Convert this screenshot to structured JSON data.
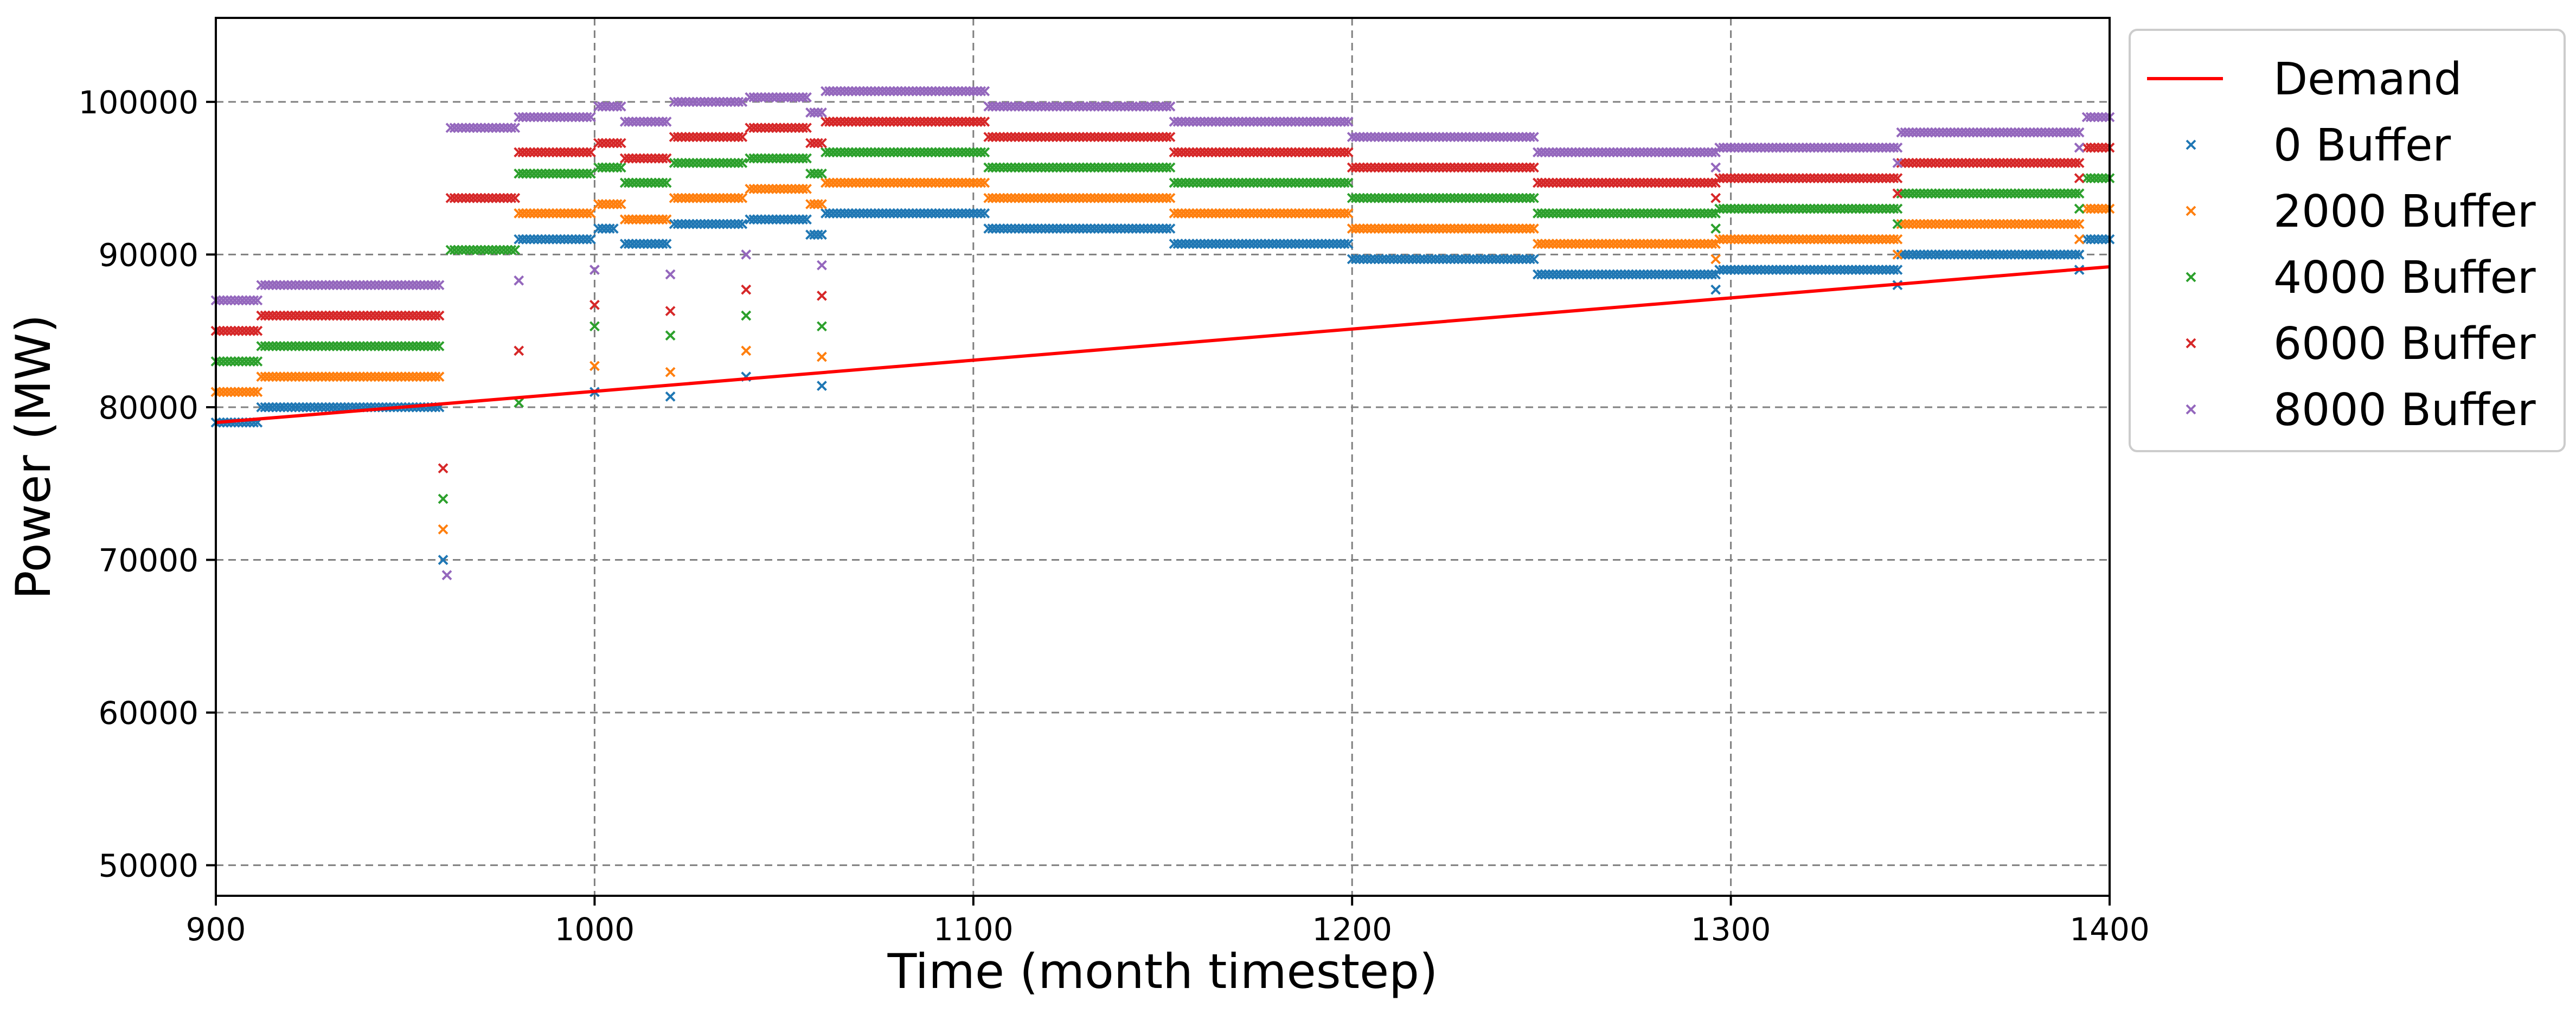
{
  "chart_data": {
    "type": "scatter",
    "title": "",
    "xlabel": "Time (month timestep)",
    "ylabel": "Power (MW)",
    "xlim": [
      900,
      1400
    ],
    "ylim": [
      48000,
      105500
    ],
    "x_ticks": [
      900,
      1000,
      1100,
      1200,
      1300,
      1400
    ],
    "y_ticks": [
      50000,
      60000,
      70000,
      80000,
      90000,
      100000
    ],
    "grid": true,
    "legend_position": "outside-right-top",
    "demand": {
      "name": "Demand",
      "type": "line",
      "color": "#ff0000",
      "x": [
        900,
        1400
      ],
      "y": [
        79000,
        89200
      ]
    },
    "series": [
      {
        "name": "0 Buffer",
        "color": "#1f77b4",
        "marker": "x",
        "segments": [
          {
            "x_start": 900,
            "x_end": 911,
            "y": 79000
          },
          {
            "x_start": 912,
            "x_end": 959,
            "y": 80000
          },
          {
            "x_start": 980,
            "x_end": 999,
            "y": 91000
          },
          {
            "x_start": 1001,
            "x_end": 1005,
            "y": 91700
          },
          {
            "x_start": 1008,
            "x_end": 1019,
            "y": 90700
          },
          {
            "x_start": 1021,
            "x_end": 1039,
            "y": 92000
          },
          {
            "x_start": 1041,
            "x_end": 1056,
            "y": 92300
          },
          {
            "x_start": 1057,
            "x_end": 1060,
            "y": 91300
          },
          {
            "x_start": 1061,
            "x_end": 1103,
            "y": 92700
          },
          {
            "x_start": 1104,
            "x_end": 1152,
            "y": 91700
          },
          {
            "x_start": 1153,
            "x_end": 1199,
            "y": 90700
          },
          {
            "x_start": 1200,
            "x_end": 1248,
            "y": 89700
          },
          {
            "x_start": 1249,
            "x_end": 1296,
            "y": 88700
          },
          {
            "x_start": 1297,
            "x_end": 1344,
            "y": 89000
          },
          {
            "x_start": 1345,
            "x_end": 1392,
            "y": 90000
          },
          {
            "x_start": 1394,
            "x_end": 1400,
            "y": 91000
          }
        ],
        "points": [
          {
            "x": 960,
            "y": 70000
          },
          {
            "x": 1000,
            "y": 81000
          },
          {
            "x": 1020,
            "y": 80700
          },
          {
            "x": 1040,
            "y": 82000
          },
          {
            "x": 1060,
            "y": 81400
          },
          {
            "x": 1296,
            "y": 87700
          },
          {
            "x": 1344,
            "y": 88000
          },
          {
            "x": 1392,
            "y": 89000
          }
        ]
      },
      {
        "name": "2000 Buffer",
        "color": "#ff7f0e",
        "marker": "x",
        "segments": [
          {
            "x_start": 900,
            "x_end": 911,
            "y": 81000
          },
          {
            "x_start": 912,
            "x_end": 959,
            "y": 82000
          },
          {
            "x_start": 980,
            "x_end": 999,
            "y": 92700
          },
          {
            "x_start": 1001,
            "x_end": 1007,
            "y": 93300
          },
          {
            "x_start": 1008,
            "x_end": 1019,
            "y": 92300
          },
          {
            "x_start": 1021,
            "x_end": 1039,
            "y": 93700
          },
          {
            "x_start": 1041,
            "x_end": 1056,
            "y": 94300
          },
          {
            "x_start": 1057,
            "x_end": 1060,
            "y": 93300
          },
          {
            "x_start": 1061,
            "x_end": 1103,
            "y": 94700
          },
          {
            "x_start": 1104,
            "x_end": 1152,
            "y": 93700
          },
          {
            "x_start": 1153,
            "x_end": 1199,
            "y": 92700
          },
          {
            "x_start": 1200,
            "x_end": 1248,
            "y": 91700
          },
          {
            "x_start": 1249,
            "x_end": 1296,
            "y": 90700
          },
          {
            "x_start": 1297,
            "x_end": 1344,
            "y": 91000
          },
          {
            "x_start": 1345,
            "x_end": 1392,
            "y": 92000
          },
          {
            "x_start": 1394,
            "x_end": 1400,
            "y": 93000
          }
        ],
        "points": [
          {
            "x": 960,
            "y": 72000
          },
          {
            "x": 1000,
            "y": 82700
          },
          {
            "x": 1020,
            "y": 82300
          },
          {
            "x": 1040,
            "y": 83700
          },
          {
            "x": 1060,
            "y": 83300
          },
          {
            "x": 1296,
            "y": 89700
          },
          {
            "x": 1344,
            "y": 90000
          },
          {
            "x": 1392,
            "y": 91000
          }
        ]
      },
      {
        "name": "4000 Buffer",
        "color": "#2ca02c",
        "marker": "x",
        "segments": [
          {
            "x_start": 900,
            "x_end": 911,
            "y": 83000
          },
          {
            "x_start": 912,
            "x_end": 959,
            "y": 84000
          },
          {
            "x_start": 962,
            "x_end": 979,
            "y": 90300
          },
          {
            "x_start": 980,
            "x_end": 999,
            "y": 95300
          },
          {
            "x_start": 1001,
            "x_end": 1007,
            "y": 95700
          },
          {
            "x_start": 1008,
            "x_end": 1019,
            "y": 94700
          },
          {
            "x_start": 1021,
            "x_end": 1039,
            "y": 96000
          },
          {
            "x_start": 1041,
            "x_end": 1056,
            "y": 96300
          },
          {
            "x_start": 1057,
            "x_end": 1060,
            "y": 95300
          },
          {
            "x_start": 1061,
            "x_end": 1103,
            "y": 96700
          },
          {
            "x_start": 1104,
            "x_end": 1152,
            "y": 95700
          },
          {
            "x_start": 1153,
            "x_end": 1199,
            "y": 94700
          },
          {
            "x_start": 1200,
            "x_end": 1248,
            "y": 93700
          },
          {
            "x_start": 1249,
            "x_end": 1296,
            "y": 92700
          },
          {
            "x_start": 1297,
            "x_end": 1344,
            "y": 93000
          },
          {
            "x_start": 1345,
            "x_end": 1392,
            "y": 94000
          },
          {
            "x_start": 1394,
            "x_end": 1400,
            "y": 95000
          }
        ],
        "points": [
          {
            "x": 960,
            "y": 74000
          },
          {
            "x": 980,
            "y": 80300
          },
          {
            "x": 1000,
            "y": 85300
          },
          {
            "x": 1020,
            "y": 84700
          },
          {
            "x": 1040,
            "y": 86000
          },
          {
            "x": 1060,
            "y": 85300
          },
          {
            "x": 1296,
            "y": 91700
          },
          {
            "x": 1344,
            "y": 92000
          },
          {
            "x": 1392,
            "y": 93000
          }
        ]
      },
      {
        "name": "6000 Buffer",
        "color": "#d62728",
        "marker": "x",
        "segments": [
          {
            "x_start": 900,
            "x_end": 911,
            "y": 85000
          },
          {
            "x_start": 912,
            "x_end": 959,
            "y": 86000
          },
          {
            "x_start": 962,
            "x_end": 979,
            "y": 93700
          },
          {
            "x_start": 980,
            "x_end": 999,
            "y": 96700
          },
          {
            "x_start": 1001,
            "x_end": 1007,
            "y": 97300
          },
          {
            "x_start": 1008,
            "x_end": 1019,
            "y": 96300
          },
          {
            "x_start": 1021,
            "x_end": 1039,
            "y": 97700
          },
          {
            "x_start": 1041,
            "x_end": 1056,
            "y": 98300
          },
          {
            "x_start": 1057,
            "x_end": 1060,
            "y": 97300
          },
          {
            "x_start": 1061,
            "x_end": 1103,
            "y": 98700
          },
          {
            "x_start": 1104,
            "x_end": 1152,
            "y": 97700
          },
          {
            "x_start": 1153,
            "x_end": 1199,
            "y": 96700
          },
          {
            "x_start": 1200,
            "x_end": 1248,
            "y": 95700
          },
          {
            "x_start": 1249,
            "x_end": 1296,
            "y": 94700
          },
          {
            "x_start": 1297,
            "x_end": 1344,
            "y": 95000
          },
          {
            "x_start": 1345,
            "x_end": 1392,
            "y": 96000
          },
          {
            "x_start": 1394,
            "x_end": 1400,
            "y": 97000
          }
        ],
        "points": [
          {
            "x": 960,
            "y": 76000
          },
          {
            "x": 980,
            "y": 83700
          },
          {
            "x": 1000,
            "y": 86700
          },
          {
            "x": 1020,
            "y": 86300
          },
          {
            "x": 1040,
            "y": 87700
          },
          {
            "x": 1060,
            "y": 87300
          },
          {
            "x": 1296,
            "y": 93700
          },
          {
            "x": 1344,
            "y": 94000
          },
          {
            "x": 1392,
            "y": 95000
          }
        ]
      },
      {
        "name": "8000 Buffer",
        "color": "#9467bd",
        "marker": "x",
        "segments": [
          {
            "x_start": 900,
            "x_end": 911,
            "y": 87000
          },
          {
            "x_start": 912,
            "x_end": 959,
            "y": 88000
          },
          {
            "x_start": 962,
            "x_end": 979,
            "y": 98300
          },
          {
            "x_start": 980,
            "x_end": 999,
            "y": 99000
          },
          {
            "x_start": 1001,
            "x_end": 1007,
            "y": 99700
          },
          {
            "x_start": 1008,
            "x_end": 1019,
            "y": 98700
          },
          {
            "x_start": 1021,
            "x_end": 1039,
            "y": 100000
          },
          {
            "x_start": 1041,
            "x_end": 1056,
            "y": 100300
          },
          {
            "x_start": 1057,
            "x_end": 1060,
            "y": 99300
          },
          {
            "x_start": 1061,
            "x_end": 1103,
            "y": 100700
          },
          {
            "x_start": 1104,
            "x_end": 1152,
            "y": 99700
          },
          {
            "x_start": 1153,
            "x_end": 1199,
            "y": 98700
          },
          {
            "x_start": 1200,
            "x_end": 1248,
            "y": 97700
          },
          {
            "x_start": 1249,
            "x_end": 1296,
            "y": 96700
          },
          {
            "x_start": 1297,
            "x_end": 1344,
            "y": 97000
          },
          {
            "x_start": 1345,
            "x_end": 1392,
            "y": 98000
          },
          {
            "x_start": 1394,
            "x_end": 1400,
            "y": 99000
          }
        ],
        "points": [
          {
            "x": 961,
            "y": 69000
          },
          {
            "x": 980,
            "y": 88300
          },
          {
            "x": 1000,
            "y": 89000
          },
          {
            "x": 1020,
            "y": 88700
          },
          {
            "x": 1040,
            "y": 90000
          },
          {
            "x": 1060,
            "y": 89300
          },
          {
            "x": 1296,
            "y": 95700
          },
          {
            "x": 1344,
            "y": 96000
          },
          {
            "x": 1392,
            "y": 97000
          }
        ]
      }
    ]
  }
}
